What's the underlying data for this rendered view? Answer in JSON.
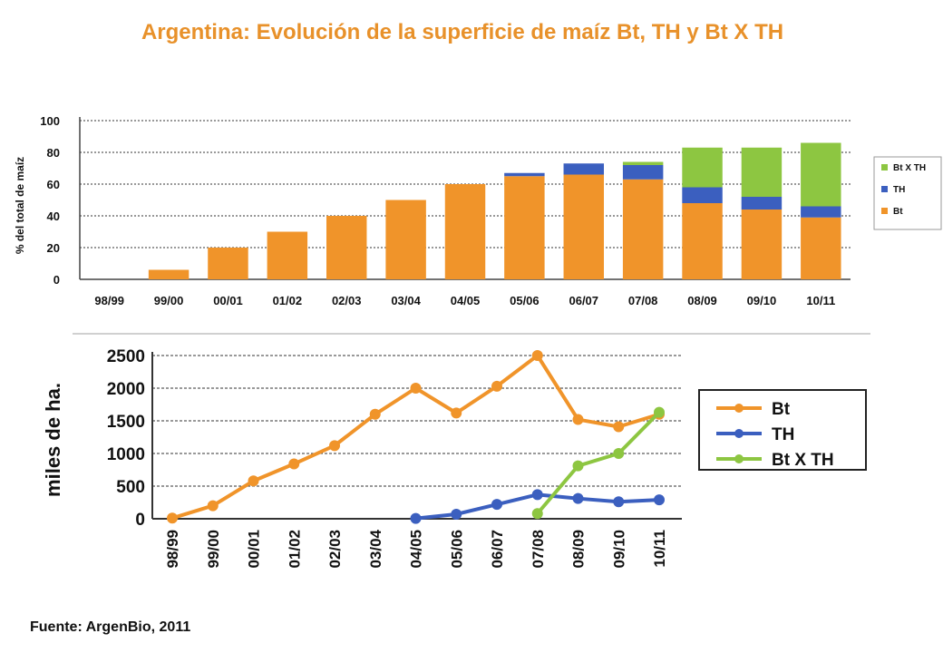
{
  "page": {
    "title": "Argentina: Evolución de la superficie de maíz Bt, TH y Bt X TH",
    "source": "Fuente: ArgenBio, 2011"
  },
  "colors": {
    "bt": "#f0942a",
    "th": "#3b5fbf",
    "btxth": "#8dc641",
    "title": "#e8912a"
  },
  "chart_data": [
    {
      "type": "bar",
      "stacked": true,
      "title": "",
      "ylabel": "% del total de maíz",
      "xlabel": "",
      "ylim": [
        0,
        100
      ],
      "yticks": [
        0,
        20,
        40,
        60,
        80,
        100
      ],
      "grid": true,
      "legend_position": "right",
      "categories": [
        "98/99",
        "99/00",
        "00/01",
        "01/02",
        "02/03",
        "03/04",
        "04/05",
        "05/06",
        "06/07",
        "07/08",
        "08/09",
        "09/10",
        "10/11"
      ],
      "series": [
        {
          "name": "Bt",
          "key": "bt",
          "values": [
            0,
            6,
            20,
            30,
            40,
            50,
            60,
            65,
            66,
            63,
            48,
            44,
            39
          ]
        },
        {
          "name": "TH",
          "key": "th",
          "values": [
            0,
            0,
            0,
            0,
            0,
            0,
            0,
            2,
            7,
            9,
            10,
            8,
            7
          ]
        },
        {
          "name": "Bt X TH",
          "key": "btxth",
          "values": [
            0,
            0,
            0,
            0,
            0,
            0,
            0,
            0,
            0,
            2,
            25,
            31,
            40
          ]
        }
      ]
    },
    {
      "type": "line",
      "title": "",
      "ylabel": "miles de ha.",
      "xlabel": "",
      "ylim": [
        0,
        2500
      ],
      "yticks": [
        0,
        500,
        1000,
        1500,
        2000,
        2500
      ],
      "grid": true,
      "legend_position": "right",
      "categories": [
        "98/99",
        "99/00",
        "00/01",
        "01/02",
        "02/03",
        "03/04",
        "04/05",
        "05/06",
        "06/07",
        "07/08",
        "08/09",
        "09/10",
        "10/11"
      ],
      "series": [
        {
          "name": "Bt",
          "key": "bt",
          "values": [
            10,
            200,
            580,
            840,
            1120,
            1600,
            2000,
            1620,
            2030,
            2500,
            1520,
            1410,
            1600
          ]
        },
        {
          "name": "TH",
          "key": "th",
          "values": [
            null,
            null,
            null,
            null,
            null,
            null,
            5,
            70,
            220,
            370,
            310,
            260,
            290
          ]
        },
        {
          "name": "Bt X TH",
          "key": "btxth",
          "values": [
            null,
            null,
            null,
            null,
            null,
            null,
            null,
            null,
            null,
            80,
            810,
            1000,
            1630
          ]
        }
      ]
    }
  ]
}
